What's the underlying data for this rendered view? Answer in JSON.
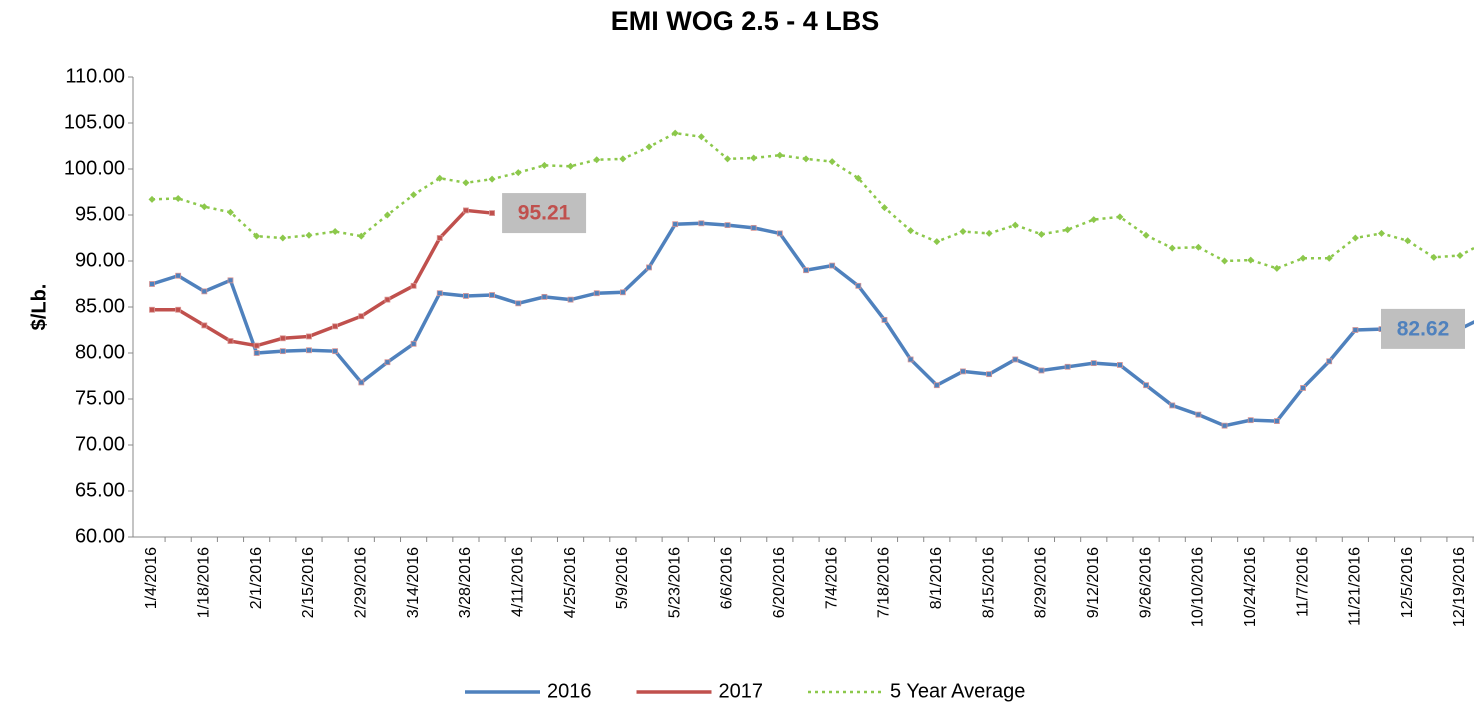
{
  "chart_data": {
    "type": "line",
    "title": "EMI WOG 2.5 - 4 LBS",
    "y_label": "$/Lb.",
    "categories": [
      "1/4/2016",
      null,
      "1/18/2016",
      null,
      "2/1/2016",
      null,
      "2/15/2016",
      null,
      "2/29/2016",
      null,
      "3/14/2016",
      null,
      "3/28/2016",
      null,
      "4/11/2016",
      null,
      "4/25/2016",
      null,
      "5/9/2016",
      null,
      "5/23/2016",
      null,
      "6/6/2016",
      null,
      "6/20/2016",
      null,
      "7/4/2016",
      null,
      "7/18/2016",
      null,
      "8/1/2016",
      null,
      "8/15/2016",
      null,
      "8/29/2016",
      null,
      "9/12/2016",
      null,
      "9/26/2016",
      null,
      "10/10/2016",
      null,
      "10/24/2016",
      null,
      "11/7/2016",
      null,
      "11/21/2016",
      null,
      "12/5/2016",
      null,
      "12/19/2016",
      null
    ],
    "series": [
      {
        "name": "2016",
        "color": "#4f81bd",
        "marker": "square",
        "dash": "solid",
        "values": [
          87.5,
          88.4,
          86.7,
          87.9,
          80.0,
          80.2,
          80.3,
          80.2,
          76.8,
          79.0,
          81.0,
          86.5,
          86.2,
          86.3,
          85.4,
          86.1,
          85.8,
          86.5,
          86.6,
          89.3,
          94.0,
          94.1,
          93.9,
          93.6,
          93.0,
          89.0,
          89.5,
          87.3,
          83.6,
          79.3,
          76.5,
          78.0,
          77.7,
          79.3,
          78.1,
          78.5,
          78.9,
          78.7,
          76.5,
          74.3,
          73.3,
          72.1,
          72.7,
          72.6,
          76.2,
          79.1,
          82.5,
          82.6,
          82.6,
          82.6,
          82.62,
          84.0
        ],
        "value_labels": [
          null,
          null,
          null,
          null,
          null,
          null,
          null,
          null,
          null,
          null,
          null,
          null,
          null,
          null,
          null,
          null,
          null,
          null,
          null,
          null,
          null,
          null,
          null,
          null,
          null,
          null,
          null,
          null,
          null,
          null,
          null,
          null,
          null,
          null,
          null,
          null,
          null,
          null,
          null,
          null,
          null,
          null,
          null,
          null,
          null,
          null,
          null,
          null,
          null,
          null,
          "82.62",
          null
        ]
      },
      {
        "name": "2017",
        "color": "#c0504d",
        "marker": "square",
        "dash": "solid",
        "values": [
          84.7,
          84.7,
          83.0,
          81.3,
          80.8,
          81.6,
          81.8,
          82.9,
          84.0,
          85.8,
          87.3,
          92.5,
          95.5,
          95.21,
          null,
          null,
          null,
          null,
          null,
          null,
          null,
          null,
          null,
          null,
          null,
          null,
          null,
          null,
          null,
          null,
          null,
          null,
          null,
          null,
          null,
          null,
          null,
          null,
          null,
          null,
          null,
          null,
          null,
          null,
          null,
          null,
          null,
          null,
          null,
          null,
          null,
          null
        ],
        "value_labels": [
          null,
          null,
          null,
          null,
          null,
          null,
          null,
          null,
          null,
          null,
          null,
          null,
          null,
          "95.21",
          null,
          null,
          null,
          null,
          null,
          null,
          null,
          null,
          null,
          null,
          null,
          null,
          null,
          null,
          null,
          null,
          null,
          null,
          null,
          null,
          null,
          null,
          null,
          null,
          null,
          null,
          null,
          null,
          null,
          null,
          null,
          null,
          null,
          null,
          null,
          null,
          null,
          null
        ]
      },
      {
        "name": "5 Year Average",
        "color": "#8cc84b",
        "marker": "diamond",
        "dash": "dotted",
        "values": [
          96.7,
          96.8,
          95.9,
          95.3,
          92.7,
          92.5,
          92.8,
          93.2,
          92.7,
          95.0,
          97.2,
          99.0,
          98.5,
          98.9,
          99.6,
          100.4,
          100.3,
          101.0,
          101.1,
          102.4,
          103.9,
          103.5,
          101.1,
          101.2,
          101.5,
          101.1,
          100.8,
          99.0,
          95.8,
          93.3,
          92.1,
          93.2,
          93.0,
          93.9,
          92.9,
          93.4,
          94.5,
          94.8,
          92.8,
          91.4,
          91.5,
          90.0,
          90.1,
          89.2,
          90.3,
          90.3,
          92.5,
          93.0,
          92.2,
          90.4,
          90.6,
          92.1
        ]
      }
    ],
    "ylim": [
      60,
      110
    ],
    "yticks": [
      {
        "value": 60,
        "label": "60.00"
      },
      {
        "value": 65,
        "label": "65.00"
      },
      {
        "value": 70,
        "label": "70.00"
      },
      {
        "value": 75,
        "label": "75.00"
      },
      {
        "value": 80,
        "label": "80.00"
      },
      {
        "value": 85,
        "label": "85.00"
      },
      {
        "value": 90,
        "label": "90.00"
      },
      {
        "value": 95,
        "label": "95.00"
      },
      {
        "value": 100,
        "label": "100.00"
      },
      {
        "value": 105,
        "label": "105.00"
      },
      {
        "value": 110,
        "label": "110.00"
      }
    ],
    "grid": false,
    "legend": "bottom"
  }
}
